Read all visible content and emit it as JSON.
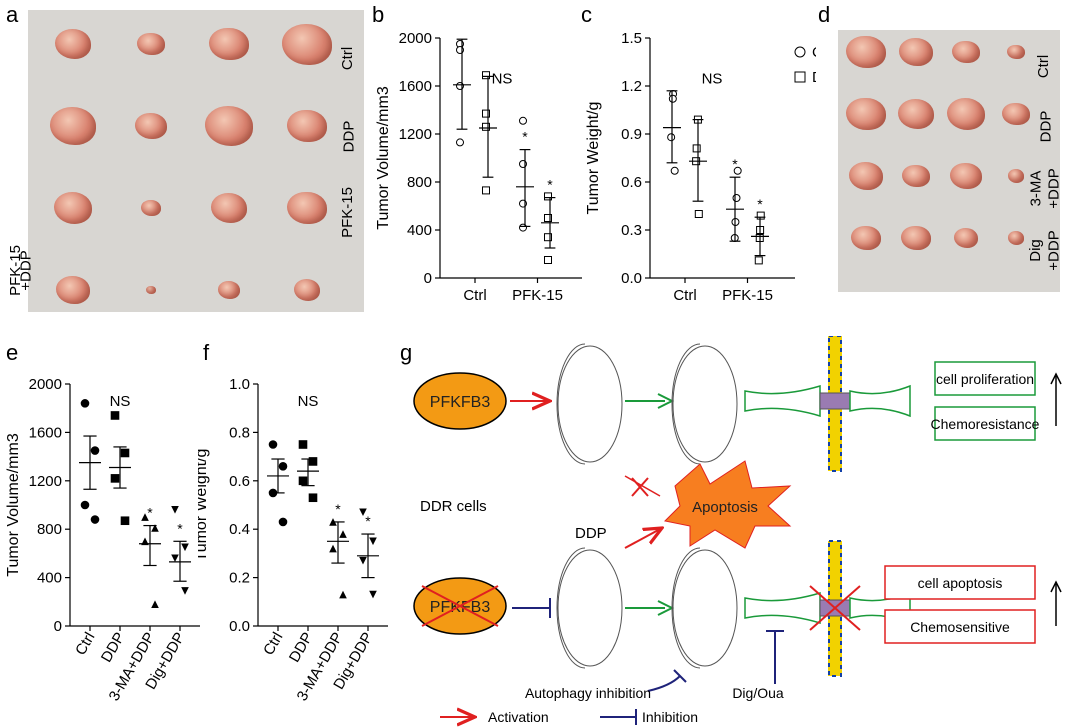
{
  "panel_letters": [
    "a",
    "b",
    "c",
    "d",
    "e",
    "f",
    "g"
  ],
  "photo_a": {
    "row_labels": [
      "Ctrl",
      "DDP",
      "PFK-15",
      "PFK-15",
      "+DDP"
    ]
  },
  "photo_d": {
    "row_labels": [
      "Ctrl",
      "DDP",
      "3-MA",
      "+DDP",
      "Dig",
      "+DDP"
    ]
  },
  "chart_data": [
    {
      "id": "b",
      "type": "scatter",
      "ylabel": "Tumor Volume/mm3",
      "xlabel": "",
      "ylim": [
        0,
        2000
      ],
      "yticks": [
        0,
        400,
        800,
        1200,
        1600,
        2000
      ],
      "categories": [
        "Ctrl",
        "PFK-15"
      ],
      "legend": {
        "placement": "top-right",
        "entries": [
          "Ctrl",
          "DDP"
        ]
      },
      "annotations": [
        "NS",
        "*",
        "*"
      ],
      "series": [
        {
          "name": "Ctrl",
          "marker": "circle",
          "points": [
            [
              0,
              1950
            ],
            [
              0,
              1900
            ],
            [
              0,
              1600
            ],
            [
              0,
              1130
            ]
          ],
          "mean": [
            0,
            1610
          ],
          "err": [
            1240,
            1990
          ]
        },
        {
          "name": "DDP",
          "marker": "square",
          "points": [
            [
              0,
              1690
            ],
            [
              0,
              1370
            ],
            [
              0,
              1260
            ],
            [
              0,
              730
            ]
          ],
          "mean": [
            0,
            1250
          ],
          "err": [
            840,
            1680
          ]
        },
        {
          "name": "Ctrl",
          "marker": "circle",
          "points": [
            [
              1,
              1310
            ],
            [
              1,
              950
            ],
            [
              1,
              620
            ],
            [
              1,
              420
            ]
          ],
          "mean": [
            1,
            760
          ],
          "err": [
            430,
            1070
          ]
        },
        {
          "name": "DDP",
          "marker": "square",
          "points": [
            [
              1,
              680
            ],
            [
              1,
              500
            ],
            [
              1,
              340
            ],
            [
              1,
              150
            ]
          ],
          "mean": [
            1,
            460
          ],
          "err": [
            250,
            670
          ]
        }
      ]
    },
    {
      "id": "c",
      "type": "scatter",
      "ylabel": "Tumor Weight/g",
      "xlabel": "",
      "ylim": [
        0,
        1.5
      ],
      "yticks": [
        0,
        0.3,
        0.6,
        0.9,
        1.2,
        1.5
      ],
      "categories": [
        "Ctrl",
        "PFK-15"
      ],
      "legend": {
        "placement": "top-right",
        "entries": [
          "Ctrl",
          "DDP"
        ]
      },
      "annotations": [
        "NS",
        "*",
        "*"
      ],
      "series": [
        {
          "name": "Ctrl",
          "marker": "circle",
          "points": [
            [
              0,
              1.15
            ],
            [
              0,
              1.12
            ],
            [
              0,
              0.88
            ],
            [
              0,
              0.67
            ]
          ],
          "mean": [
            0,
            0.94
          ],
          "err": [
            0.72,
            1.17
          ]
        },
        {
          "name": "DDP",
          "marker": "square",
          "points": [
            [
              0,
              0.99
            ],
            [
              0,
              0.81
            ],
            [
              0,
              0.73
            ],
            [
              0,
              0.4
            ]
          ],
          "mean": [
            0,
            0.73
          ],
          "err": [
            0.48,
            0.99
          ]
        },
        {
          "name": "Ctrl",
          "marker": "circle",
          "points": [
            [
              1,
              0.67
            ],
            [
              1,
              0.5
            ],
            [
              1,
              0.35
            ],
            [
              1,
              0.25
            ]
          ],
          "mean": [
            1,
            0.43
          ],
          "err": [
            0.23,
            0.63
          ]
        },
        {
          "name": "DDP",
          "marker": "square",
          "points": [
            [
              1,
              0.39
            ],
            [
              1,
              0.3
            ],
            [
              1,
              0.25
            ],
            [
              1,
              0.11
            ]
          ],
          "mean": [
            1,
            0.26
          ],
          "err": [
            0.14,
            0.38
          ]
        }
      ]
    },
    {
      "id": "e",
      "type": "scatter",
      "ylabel": "Tumor Volume/mm3",
      "xlabel": "",
      "ylim": [
        0,
        2000
      ],
      "yticks": [
        0,
        400,
        800,
        1200,
        1600,
        2000
      ],
      "categories": [
        "Ctrl",
        "DDP",
        "3-MA+DDP",
        "Dig+DDP"
      ],
      "annotations": [
        "NS",
        "*",
        "*"
      ],
      "groups": [
        {
          "category": "Ctrl",
          "marker": "circle",
          "points": [
            1840,
            1450,
            1000,
            880
          ],
          "mean": 1350,
          "err": [
            1130,
            1570
          ]
        },
        {
          "category": "DDP",
          "marker": "square",
          "points": [
            1740,
            1430,
            1220,
            870
          ],
          "mean": 1310,
          "err": [
            1140,
            1480
          ]
        },
        {
          "category": "3-MA+DDP",
          "marker": "triangle-up",
          "points": [
            900,
            810,
            700,
            180
          ],
          "mean": 680,
          "err": [
            500,
            830
          ]
        },
        {
          "category": "Dig+DDP",
          "marker": "triangle-down",
          "points": [
            960,
            650,
            560,
            290
          ],
          "mean": 530,
          "err": [
            370,
            700
          ]
        }
      ]
    },
    {
      "id": "f",
      "type": "scatter",
      "ylabel": "Tumor Weight/g",
      "xlabel": "",
      "ylim": [
        0,
        1.0
      ],
      "yticks": [
        0,
        0.2,
        0.4,
        0.6,
        0.8,
        1.0
      ],
      "categories": [
        "Ctrl",
        "DDP",
        "3-MA+DDP",
        "Dig+DDP"
      ],
      "annotations": [
        "NS",
        "*",
        "*"
      ],
      "groups": [
        {
          "category": "Ctrl",
          "marker": "circle",
          "points": [
            0.75,
            0.66,
            0.55,
            0.43
          ],
          "mean": 0.62,
          "err": [
            0.55,
            0.69
          ]
        },
        {
          "category": "DDP",
          "marker": "square",
          "points": [
            0.75,
            0.68,
            0.6,
            0.53
          ],
          "mean": 0.64,
          "err": [
            0.58,
            0.69
          ]
        },
        {
          "category": "3-MA+DDP",
          "marker": "triangle-up",
          "points": [
            0.43,
            0.38,
            0.32,
            0.13
          ],
          "mean": 0.35,
          "err": [
            0.26,
            0.43
          ]
        },
        {
          "category": "Dig+DDP",
          "marker": "triangle-down",
          "points": [
            0.47,
            0.35,
            0.27,
            0.13
          ],
          "mean": 0.29,
          "err": [
            0.2,
            0.38
          ]
        }
      ]
    }
  ],
  "diagram_g": {
    "pfkfb3": "PFKFB3",
    "ddr_cells": "DDR cells",
    "apoptosis": "Apoptosis",
    "ddp": "DDP",
    "outcomes_top": [
      "cell proliferation",
      "Chemoresistance"
    ],
    "outcomes_bottom": [
      "cell apoptosis",
      "Chemosensitive"
    ],
    "autophagy_inhibition": "Autophagy inhibition",
    "dig_oua": "Dig/Oua",
    "legend_activation": "Activation",
    "legend_inhibition": "Inhibition",
    "colors": {
      "orange": "#f39a14",
      "red": "#e02020",
      "green": "#1a9a3a",
      "navy": "#1f237a",
      "yellow": "#f2d200",
      "blue": "#1240a8"
    }
  }
}
